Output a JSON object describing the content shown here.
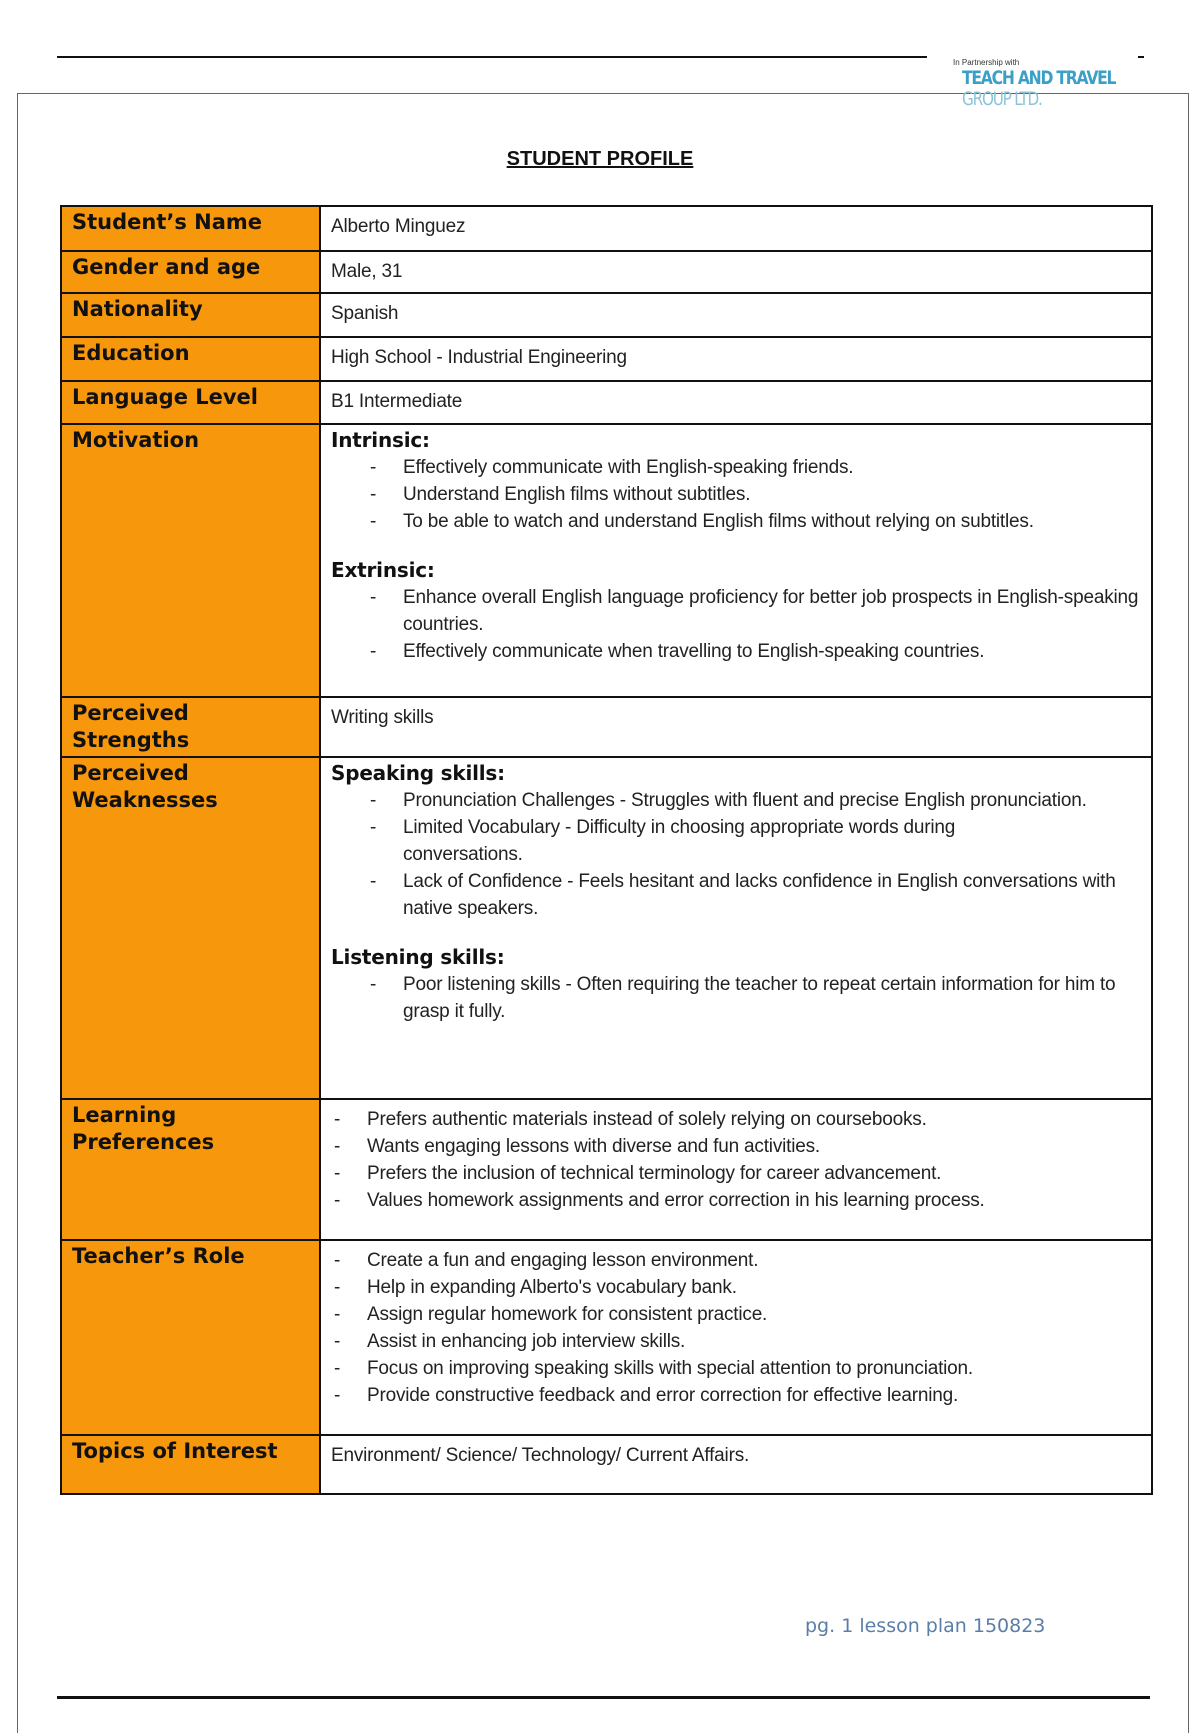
{
  "logo": {
    "tagline": "In Partnership with",
    "line1": "TEACH AND TRAVEL",
    "line2": "GROUP LTD."
  },
  "title": "STUDENT PROFILE",
  "colors": {
    "label_bg": "#f7970b",
    "footer": "#5a7ea8"
  },
  "rows": {
    "name": {
      "label": "Student’s Name",
      "value": "Alberto Minguez"
    },
    "gender": {
      "label": "Gender and age",
      "value": "Male, 31"
    },
    "nationality": {
      "label": "Nationality",
      "value": "Spanish"
    },
    "education": {
      "label": "Education",
      "value": "High School - Industrial Engineering"
    },
    "level": {
      "label": "Language Level",
      "value": "B1 Intermediate"
    },
    "motivation": {
      "label": "Motivation",
      "intrinsic_heading": "Intrinsic:",
      "intrinsic": [
        "Effectively communicate with English-speaking friends.",
        "Understand English films without subtitles.",
        "To be able to watch and understand English films without relying on subtitles."
      ],
      "extrinsic_heading": "Extrinsic:",
      "extrinsic": [
        "Enhance overall English language proficiency for better job prospects in English-speaking countries.",
        "Effectively communicate when travelling to English-speaking countries."
      ]
    },
    "strengths": {
      "label": "Perceived Strengths",
      "value": "Writing skills"
    },
    "weaknesses": {
      "label": "Perceived Weaknesses",
      "speaking_heading": "Speaking skills:",
      "speaking": [
        "Pronunciation Challenges  - Struggles with fluent and precise English pronunciation.",
        "Limited Vocabulary - Difficulty in choosing appropriate words during conversations.",
        "Lack of Confidence - Feels hesitant and lacks confidence in English conversations with native speakers."
      ],
      "listening_heading": "Listening skills:",
      "listening": [
        "Poor listening skills - Often requiring the teacher to repeat certain information for him to grasp it fully."
      ]
    },
    "learning": {
      "label": "Learning Preferences",
      "items": [
        "Prefers authentic materials instead of solely relying on coursebooks.",
        "Wants engaging lessons with diverse and fun activities.",
        "Prefers the inclusion of technical terminology for career advancement.",
        "Values homework assignments and error correction in his learning process."
      ]
    },
    "teacher": {
      "label": "Teacher’s Role",
      "items": [
        "Create a fun and engaging lesson environment.",
        "Help in expanding Alberto's vocabulary bank.",
        "Assign regular homework for consistent practice.",
        "Assist in enhancing job interview skills.",
        "Focus on improving speaking skills with special attention to pronunciation.",
        "Provide constructive feedback and error correction for effective learning."
      ]
    },
    "topics": {
      "label": "Topics of Interest",
      "value": "Environment/ Science/ Technology/  Current Affairs."
    }
  },
  "footer": "pg. 1 lesson plan 150823"
}
